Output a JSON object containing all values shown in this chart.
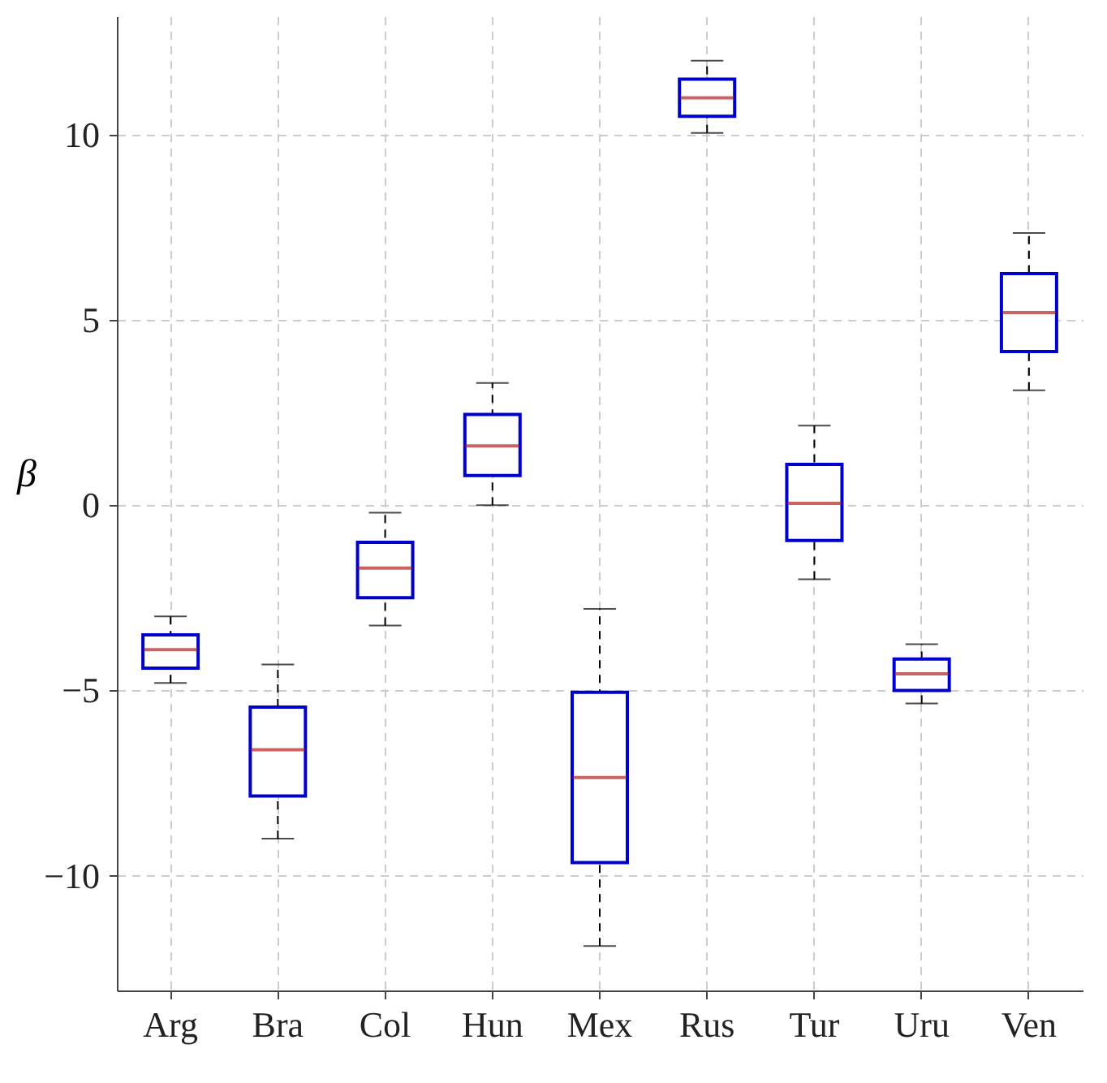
{
  "chart_data": {
    "type": "box",
    "ylabel": "β",
    "categories": [
      "Arg",
      "Bra",
      "Col",
      "Hun",
      "Mex",
      "Rus",
      "Tur",
      "Uru",
      "Ven"
    ],
    "series": [
      {
        "color": "#0000cc",
        "boxes": [
          {
            "low": -4.8,
            "q1": -4.4,
            "median": -3.9,
            "q3": -3.5,
            "high": -3.0
          },
          {
            "low": -9.0,
            "q1": -7.85,
            "median": -6.6,
            "q3": -5.45,
            "high": -4.3
          },
          {
            "low": -3.25,
            "q1": -2.5,
            "median": -1.7,
            "q3": -1.0,
            "high": -0.2
          },
          {
            "low": 0.0,
            "q1": 0.8,
            "median": 1.6,
            "q3": 2.45,
            "high": 3.3
          },
          {
            "low": -11.9,
            "q1": -9.65,
            "median": -7.35,
            "q3": -5.05,
            "high": -2.8
          },
          {
            "low": 10.05,
            "q1": 10.5,
            "median": 11.0,
            "q3": 11.5,
            "high": 12.0
          },
          {
            "low": -2.0,
            "q1": -0.95,
            "median": 0.05,
            "q3": 1.1,
            "high": 2.15
          },
          {
            "low": -5.35,
            "q1": -5.0,
            "median": -4.55,
            "q3": -4.15,
            "high": -3.75
          },
          {
            "low": 3.1,
            "q1": 4.15,
            "median": 5.2,
            "q3": 6.25,
            "high": 7.35
          }
        ]
      }
    ],
    "ylim": [
      -13.1,
      13.2
    ],
    "yticks": [
      -10,
      -5,
      0,
      5,
      10
    ],
    "grid": true
  }
}
